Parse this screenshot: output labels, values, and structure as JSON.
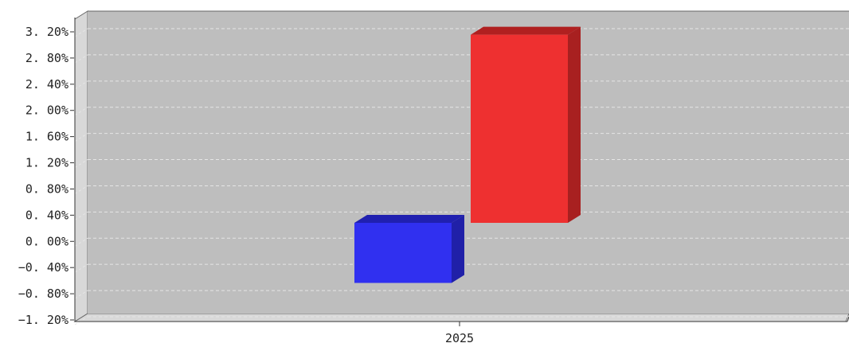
{
  "chart_data": {
    "type": "bar",
    "categories": [
      "2025"
    ],
    "series": [
      {
        "values": [
          -0.99
        ],
        "color": "#3030F0",
        "top_color": "#2020B0",
        "side_color": "#2020A8"
      },
      {
        "values": [
          3.1
        ],
        "color": "#EE3030",
        "top_color": "#B02020",
        "side_color": "#A82020"
      }
    ],
    "title": "",
    "xlabel": "",
    "ylabel": "",
    "ylim": [
      -1.2,
      3.2
    ],
    "yticks": [
      3.2,
      2.8,
      2.4,
      2.0,
      1.6,
      1.2,
      0.8,
      0.4,
      0.0,
      -0.4,
      -0.8,
      -1.2
    ],
    "ytick_labels": [
      "3. 20%",
      "2. 80%",
      "2. 40%",
      "2. 00%",
      "1. 60%",
      "1. 20%",
      "0. 80%",
      "0. 40%",
      "0. 00%",
      "−0. 40%",
      "−0. 80%",
      "−1. 20%"
    ],
    "grid": true,
    "legend": "none",
    "style": "3d",
    "plot_background": "#BEBEBE",
    "wall_color": "#D8D8D8"
  }
}
